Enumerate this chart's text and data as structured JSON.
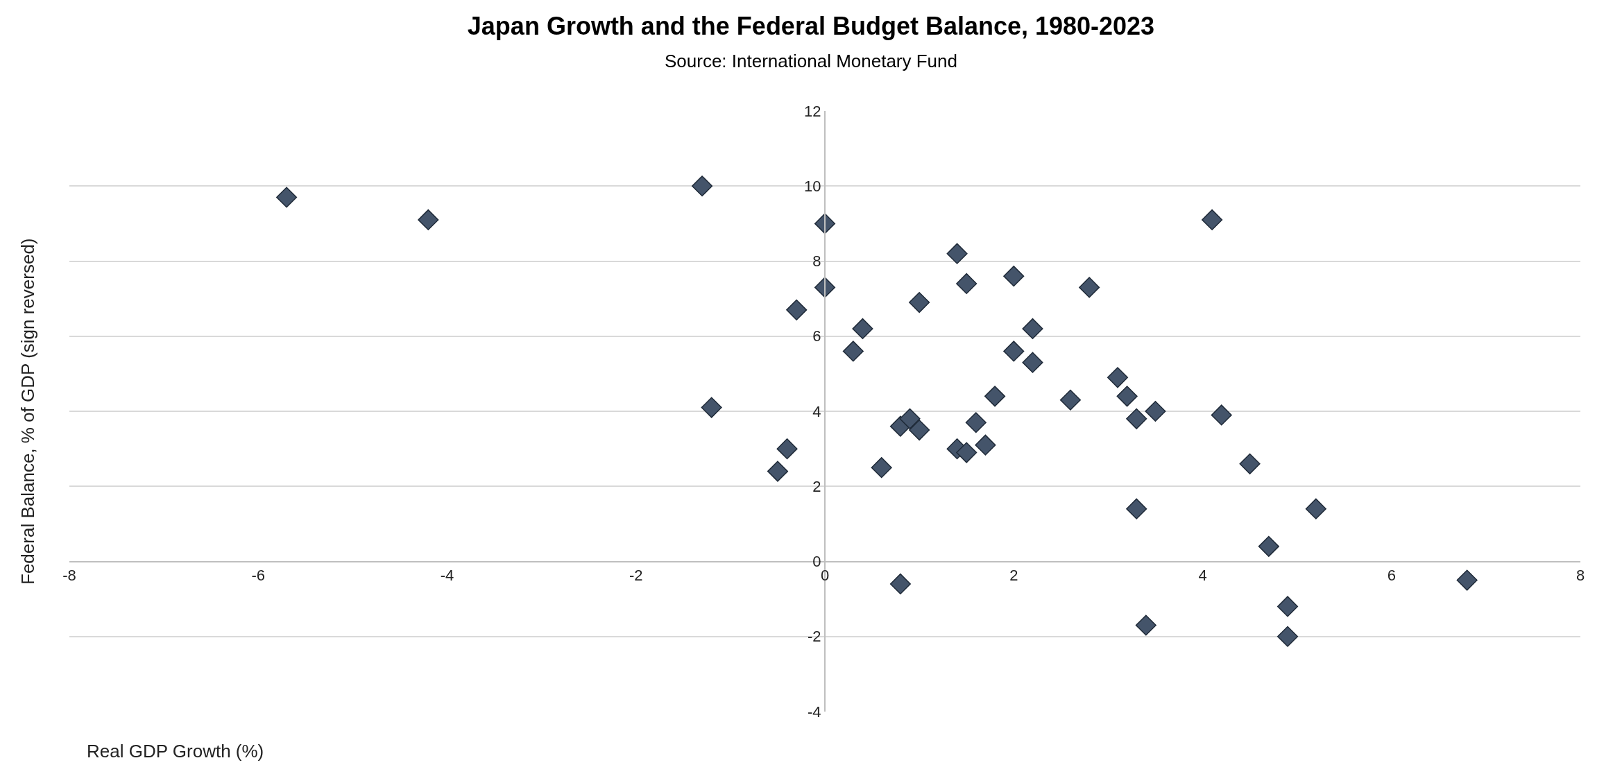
{
  "chart_data": {
    "type": "scatter",
    "title": "Japan Growth and the Federal Budget Balance, 1980-2023",
    "subtitle": "Source: International Monetary Fund",
    "xlabel": "Real GDP Growth (%)",
    "ylabel": "Federal Balance, % of GDP (sign reversed)",
    "x": [
      -5.7,
      -4.2,
      -1.3,
      -1.2,
      0,
      0,
      -0.3,
      0.4,
      0.3,
      -0.4,
      -0.5,
      0.6,
      0.8,
      0.8,
      0.9,
      1.0,
      1.0,
      1.4,
      1.5,
      1.4,
      1.5,
      1.6,
      1.7,
      1.8,
      2.0,
      2.0,
      2.2,
      2.2,
      2.6,
      2.8,
      3.1,
      3.2,
      3.3,
      3.3,
      3.4,
      3.5,
      4.1,
      4.2,
      4.5,
      4.7,
      4.9,
      4.9,
      5.2,
      6.8
    ],
    "series": [
      {
        "color": "#44546a",
        "values": [
          9.7,
          9.1,
          10.0,
          4.1,
          9.0,
          7.3,
          6.7,
          6.2,
          5.6,
          3.0,
          2.4,
          2.5,
          -0.6,
          3.6,
          3.8,
          3.5,
          6.9,
          8.2,
          7.4,
          3.0,
          2.9,
          3.7,
          3.1,
          4.4,
          7.6,
          5.6,
          6.2,
          5.3,
          4.3,
          7.3,
          4.9,
          4.4,
          3.8,
          1.4,
          -1.7,
          4.0,
          9.1,
          3.9,
          2.6,
          0.4,
          -1.2,
          -2.0,
          1.4,
          -0.5
        ]
      }
    ],
    "xlim": [
      -8,
      8
    ],
    "xticks": [
      -8,
      -6,
      -4,
      -2,
      0,
      2,
      4,
      6,
      8
    ],
    "ylim": [
      -4,
      12
    ],
    "yticks": [
      -4,
      -2,
      0,
      2,
      4,
      6,
      8,
      10,
      12
    ],
    "grid": "y",
    "marker": "diamond"
  }
}
